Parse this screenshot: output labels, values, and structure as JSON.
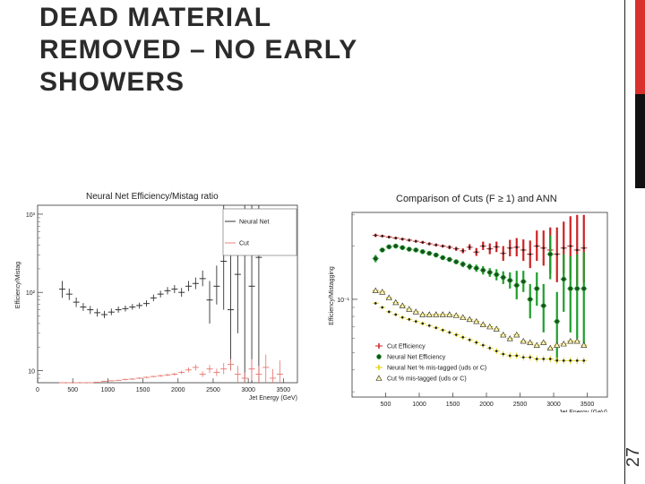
{
  "slide": {
    "title_lines": [
      "DEAD MATERIAL",
      "REMOVED – NO EARLY",
      "SHOWERS"
    ],
    "page_number": "27",
    "colors": {
      "accent_red": "#d9312b",
      "accent_black": "#111111"
    }
  },
  "chart_data": [
    {
      "type": "scatter",
      "title": "Neural Net Efficiency/Mistag ratio",
      "xlabel": "Jet Energy (GeV)",
      "ylabel": "Efficiency/Mistag",
      "xlim": [
        0,
        3700
      ],
      "ylim": [
        7,
        1300
      ],
      "yscale": "log",
      "x_ticks": [
        0,
        500,
        1000,
        1500,
        2000,
        2500,
        3000,
        3500
      ],
      "y_ticks": [
        {
          "value": 10,
          "label": "10"
        },
        {
          "value": 100,
          "label": "10²"
        },
        {
          "value": 1000,
          "label": "10³"
        }
      ],
      "legend_position": "top-right",
      "grid": false,
      "series": [
        {
          "name": "Neural Net",
          "color": "#333333",
          "x": [
            350,
            450,
            550,
            650,
            750,
            850,
            950,
            1050,
            1150,
            1250,
            1350,
            1450,
            1550,
            1650,
            1750,
            1850,
            1950,
            2050,
            2150,
            2250,
            2350,
            2450,
            2550,
            2650,
            2750,
            2850,
            2950,
            3050,
            3150
          ],
          "y": [
            110,
            95,
            75,
            65,
            60,
            55,
            52,
            56,
            60,
            62,
            65,
            68,
            72,
            85,
            95,
            105,
            110,
            100,
            120,
            130,
            150,
            80,
            120,
            250,
            60,
            170,
            300,
            120,
            280
          ],
          "ylo": [
            85,
            80,
            65,
            58,
            53,
            49,
            47,
            51,
            55,
            57,
            60,
            62,
            66,
            77,
            86,
            94,
            98,
            88,
            104,
            110,
            120,
            40,
            70,
            60,
            10,
            30,
            7,
            7,
            7
          ],
          "yhi": [
            140,
            112,
            86,
            73,
            67,
            62,
            58,
            62,
            66,
            68,
            71,
            74,
            79,
            94,
            105,
            117,
            124,
            114,
            140,
            155,
            190,
            140,
            220,
            1300,
            300,
            800,
            1300,
            1300,
            1300
          ]
        },
        {
          "name": "Cut",
          "color": "#e8807a",
          "x": [
            350,
            450,
            550,
            650,
            750,
            850,
            950,
            1050,
            1150,
            1250,
            1350,
            1450,
            1550,
            1650,
            1750,
            1850,
            1950,
            2050,
            2150,
            2250,
            2350,
            2450,
            2550,
            2650,
            2750,
            2850,
            2950,
            3050,
            3150,
            3250,
            3350,
            3450
          ],
          "y": [
            6.5,
            6.7,
            6.8,
            6.9,
            7.0,
            7.1,
            7.3,
            7.4,
            7.5,
            7.7,
            7.8,
            8.0,
            8.2,
            8.4,
            8.6,
            8.8,
            9.0,
            9.5,
            10.2,
            11,
            9.0,
            10.5,
            9.5,
            10.5,
            12,
            9.0,
            8.0,
            10.5,
            9.0,
            11,
            8.0,
            9.0
          ],
          "ylo": [
            6.4,
            6.6,
            6.7,
            6.8,
            6.9,
            7.0,
            7.2,
            7.3,
            7.4,
            7.5,
            7.6,
            7.8,
            8.0,
            8.2,
            8.3,
            8.5,
            8.6,
            9.0,
            9.5,
            10,
            8.3,
            9.3,
            8.5,
            9.0,
            10,
            7.0,
            7.0,
            7.5,
            7.0,
            7.0,
            7.0,
            7.0
          ],
          "yhi": [
            6.6,
            6.8,
            6.9,
            7.0,
            7.1,
            7.2,
            7.4,
            7.5,
            7.6,
            7.9,
            8.0,
            8.2,
            8.4,
            8.6,
            8.9,
            9.1,
            9.4,
            10,
            11,
            12,
            9.8,
            11.8,
            10.6,
            12.5,
            14,
            11.5,
            9.5,
            14,
            11.5,
            16,
            10.5,
            13.5
          ]
        }
      ]
    },
    {
      "type": "scatter",
      "title": "Comparison of Cuts (F ≥ 1) and ANN",
      "xlabel": "Jet Energy (GeV)",
      "ylabel": "Efficiency/Mistagging",
      "xlim": [
        0,
        3800
      ],
      "ylim": [
        0.028,
        0.31
      ],
      "yscale": "log",
      "x_ticks": [
        500,
        1000,
        1500,
        2000,
        2500,
        3000,
        3500
      ],
      "y_ticks": [
        {
          "value": 0.1,
          "label": "10⁻¹"
        }
      ],
      "legend_position": "bottom-left",
      "grid": false,
      "series": [
        {
          "name": "Cut Efficiency",
          "color": "#cc2222",
          "marker": "cross",
          "x": [
            350,
            450,
            550,
            650,
            750,
            850,
            950,
            1050,
            1150,
            1250,
            1350,
            1450,
            1550,
            1650,
            1750,
            1850,
            1950,
            2050,
            2150,
            2250,
            2350,
            2450,
            2550,
            2650,
            2750,
            2850,
            2950,
            3050,
            3150,
            3250,
            3350,
            3450
          ],
          "y": [
            0.23,
            0.228,
            0.225,
            0.222,
            0.219,
            0.216,
            0.213,
            0.21,
            0.206,
            0.203,
            0.2,
            0.197,
            0.193,
            0.188,
            0.197,
            0.185,
            0.2,
            0.193,
            0.198,
            0.182,
            0.195,
            0.197,
            0.19,
            0.18,
            0.2,
            0.195,
            0.19,
            0.18,
            0.195,
            0.2,
            0.19,
            0.195
          ],
          "ylo": [
            0.225,
            0.224,
            0.221,
            0.218,
            0.215,
            0.212,
            0.209,
            0.206,
            0.202,
            0.199,
            0.196,
            0.192,
            0.188,
            0.182,
            0.19,
            0.176,
            0.19,
            0.18,
            0.185,
            0.165,
            0.175,
            0.175,
            0.165,
            0.15,
            0.165,
            0.155,
            0.14,
            0.125,
            0.14,
            0.13,
            0.12,
            0.125
          ],
          "yhi": [
            0.235,
            0.232,
            0.229,
            0.226,
            0.223,
            0.22,
            0.217,
            0.214,
            0.21,
            0.207,
            0.204,
            0.202,
            0.198,
            0.194,
            0.205,
            0.195,
            0.212,
            0.207,
            0.212,
            0.2,
            0.217,
            0.222,
            0.218,
            0.215,
            0.245,
            0.245,
            0.255,
            0.255,
            0.275,
            0.295,
            0.3,
            0.3
          ]
        },
        {
          "name": "Neural Net Efficiency",
          "color": "#1f9e2c",
          "marker": "circle",
          "x": [
            350,
            450,
            550,
            650,
            750,
            850,
            950,
            1050,
            1150,
            1250,
            1350,
            1450,
            1550,
            1650,
            1750,
            1850,
            1950,
            2050,
            2150,
            2250,
            2350,
            2450,
            2550,
            2650,
            2750,
            2850,
            2950,
            3050,
            3150,
            3250,
            3350,
            3450
          ],
          "y": [
            0.17,
            0.19,
            0.198,
            0.2,
            0.196,
            0.192,
            0.19,
            0.186,
            0.182,
            0.178,
            0.172,
            0.168,
            0.163,
            0.158,
            0.153,
            0.15,
            0.146,
            0.142,
            0.138,
            0.133,
            0.128,
            0.12,
            0.126,
            0.1,
            0.115,
            0.092,
            0.18,
            0.075,
            0.13,
            0.115,
            0.115,
            0.115
          ],
          "ylo": [
            0.162,
            0.185,
            0.194,
            0.196,
            0.192,
            0.188,
            0.186,
            0.182,
            0.178,
            0.174,
            0.168,
            0.164,
            0.158,
            0.152,
            0.147,
            0.143,
            0.138,
            0.134,
            0.128,
            0.122,
            0.115,
            0.1,
            0.11,
            0.078,
            0.092,
            0.065,
            0.13,
            0.045,
            0.085,
            0.065,
            0.06,
            0.055
          ],
          "yhi": [
            0.178,
            0.195,
            0.202,
            0.204,
            0.2,
            0.196,
            0.194,
            0.19,
            0.186,
            0.182,
            0.176,
            0.172,
            0.168,
            0.164,
            0.159,
            0.157,
            0.154,
            0.15,
            0.148,
            0.144,
            0.142,
            0.145,
            0.145,
            0.122,
            0.142,
            0.122,
            0.23,
            0.11,
            0.18,
            0.175,
            0.18,
            0.185
          ]
        },
        {
          "name": "Neural Net % mis-tagged (uds or C)",
          "color": "#e0d000",
          "marker": "cross",
          "x": [
            350,
            450,
            550,
            650,
            750,
            850,
            950,
            1050,
            1150,
            1250,
            1350,
            1450,
            1550,
            1650,
            1750,
            1850,
            1950,
            2050,
            2150,
            2250,
            2350,
            2450,
            2550,
            2650,
            2750,
            2850,
            2950,
            3050,
            3150,
            3250,
            3350,
            3450
          ],
          "y": [
            0.095,
            0.09,
            0.085,
            0.082,
            0.079,
            0.077,
            0.075,
            0.073,
            0.071,
            0.069,
            0.067,
            0.065,
            0.063,
            0.061,
            0.059,
            0.057,
            0.055,
            0.053,
            0.051,
            0.049,
            0.048,
            0.048,
            0.047,
            0.047,
            0.046,
            0.046,
            0.046,
            0.045,
            0.045,
            0.045,
            0.045,
            0.045
          ],
          "ylo": [
            0.093,
            0.088,
            0.083,
            0.08,
            0.077,
            0.075,
            0.073,
            0.071,
            0.069,
            0.067,
            0.065,
            0.063,
            0.061,
            0.059,
            0.057,
            0.055,
            0.053,
            0.051,
            0.049,
            0.047,
            0.046,
            0.046,
            0.045,
            0.045,
            0.044,
            0.044,
            0.044,
            0.043,
            0.043,
            0.043,
            0.043,
            0.043
          ],
          "yhi": [
            0.097,
            0.092,
            0.087,
            0.084,
            0.081,
            0.079,
            0.077,
            0.075,
            0.073,
            0.071,
            0.069,
            0.067,
            0.065,
            0.063,
            0.061,
            0.059,
            0.057,
            0.055,
            0.053,
            0.051,
            0.05,
            0.05,
            0.049,
            0.049,
            0.048,
            0.048,
            0.048,
            0.047,
            0.047,
            0.047,
            0.047,
            0.047
          ]
        },
        {
          "name": "Cut % mis-tagged (uds or C)",
          "color": "#caa800",
          "marker": "triangle",
          "x": [
            350,
            450,
            550,
            650,
            750,
            850,
            950,
            1050,
            1150,
            1250,
            1350,
            1450,
            1550,
            1650,
            1750,
            1850,
            1950,
            2050,
            2150,
            2250,
            2350,
            2450,
            2550,
            2650,
            2750,
            2850,
            2950,
            3050,
            3150,
            3250,
            3350,
            3450
          ],
          "y": [
            0.112,
            0.11,
            0.102,
            0.096,
            0.092,
            0.088,
            0.085,
            0.082,
            0.082,
            0.082,
            0.082,
            0.082,
            0.081,
            0.079,
            0.077,
            0.075,
            0.072,
            0.07,
            0.068,
            0.063,
            0.06,
            0.063,
            0.058,
            0.057,
            0.055,
            0.057,
            0.053,
            0.055,
            0.056,
            0.058,
            0.058,
            0.055
          ],
          "ylo": [
            0.112,
            0.11,
            0.102,
            0.096,
            0.092,
            0.088,
            0.085,
            0.082,
            0.082,
            0.082,
            0.082,
            0.082,
            0.081,
            0.079,
            0.077,
            0.075,
            0.072,
            0.07,
            0.068,
            0.063,
            0.06,
            0.063,
            0.058,
            0.057,
            0.055,
            0.057,
            0.053,
            0.055,
            0.056,
            0.058,
            0.058,
            0.055
          ],
          "yhi": [
            0.112,
            0.11,
            0.102,
            0.096,
            0.092,
            0.088,
            0.085,
            0.082,
            0.082,
            0.082,
            0.082,
            0.082,
            0.081,
            0.079,
            0.077,
            0.075,
            0.072,
            0.07,
            0.068,
            0.063,
            0.06,
            0.063,
            0.058,
            0.057,
            0.055,
            0.057,
            0.053,
            0.055,
            0.056,
            0.058,
            0.058,
            0.055
          ]
        }
      ]
    }
  ]
}
